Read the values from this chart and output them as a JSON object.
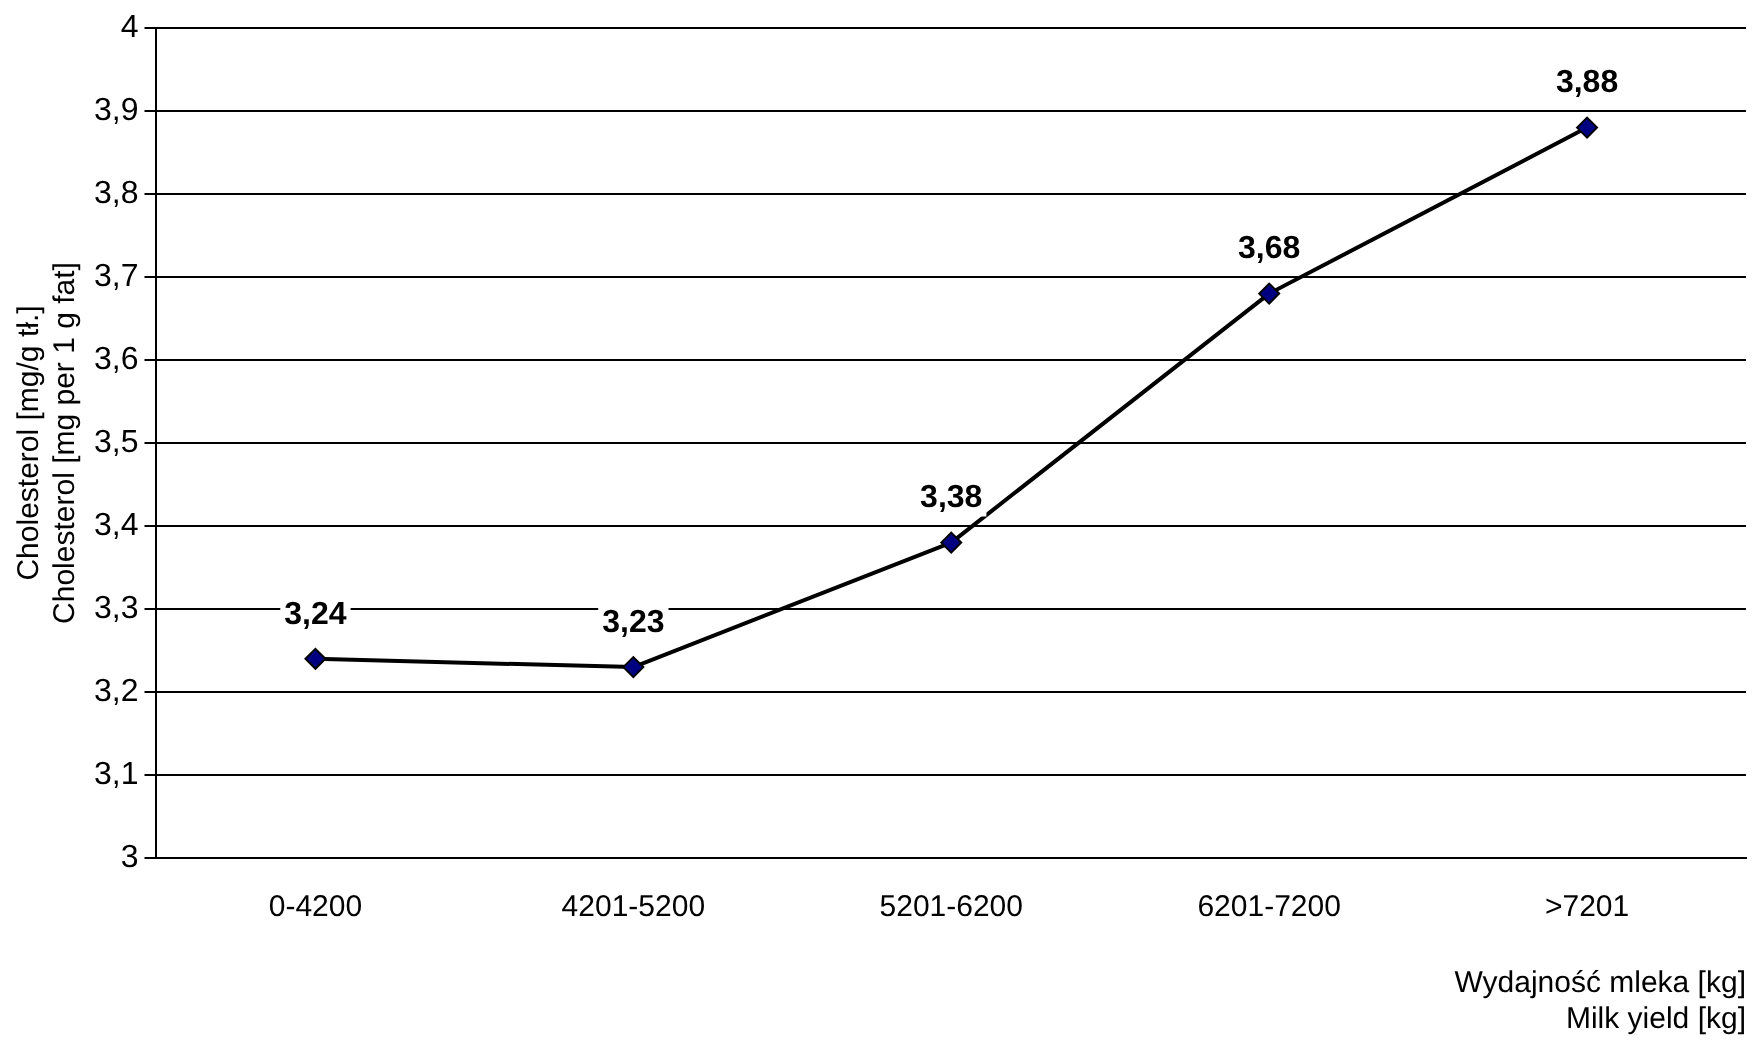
{
  "chart_data": {
    "type": "line",
    "xlabel": [
      "Wydajność mleka [kg]",
      "Milk yield [kg]"
    ],
    "ylabel": [
      "Cholesterol [mg/g tł.]",
      "Cholesterol [mg per 1 g fat]"
    ],
    "categories": [
      "0-4200",
      "4201-5200",
      "5201-6200",
      "6201-7200",
      ">7201"
    ],
    "series": [
      {
        "color": "#000000",
        "values": [
          3.24,
          3.23,
          3.38,
          3.68,
          3.88
        ],
        "value_labels": [
          "3,24",
          "3,23",
          "3,38",
          "3,68",
          "3,88"
        ]
      }
    ],
    "ylim": [
      3,
      4
    ],
    "yticks": [
      3,
      {
        "value": 3.1,
        "label": "3,1"
      },
      {
        "value": 3.2,
        "label": "3,2"
      },
      {
        "value": 3.3,
        "label": "3,3"
      },
      {
        "value": 3.4,
        "label": "3,4"
      },
      {
        "value": 3.5,
        "label": "3,5"
      },
      {
        "value": 3.6,
        "label": "3,6"
      },
      {
        "value": 3.7,
        "label": "3,7"
      },
      {
        "value": 3.8,
        "label": "3,8"
      },
      {
        "value": 3.9,
        "label": "3,9"
      },
      4
    ],
    "grid": "y",
    "legend": false,
    "marker": "diamond",
    "line_style": "solid"
  }
}
